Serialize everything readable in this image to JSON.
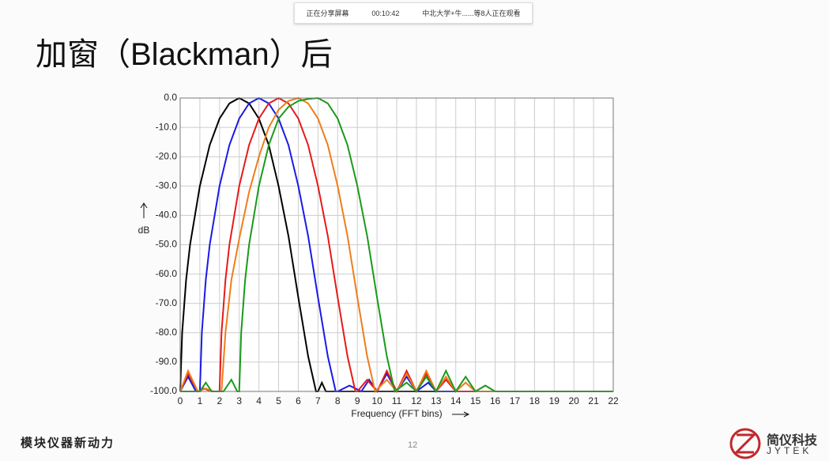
{
  "share_bar": {
    "status": "正在分享屏幕",
    "time": "00:10:42",
    "viewers": "中北大学+牛......等8人正在观看"
  },
  "slide": {
    "title": "加窗（Blackman）后",
    "footer": "模块仪器新动力",
    "page": "12",
    "logo_cn": "简仪科技",
    "logo_en": "JYTEK"
  },
  "chart_data": {
    "type": "line",
    "xlabel": "Frequency (FFT bins)",
    "ylabel": "dB",
    "xlim": [
      0,
      22
    ],
    "ylim": [
      -100,
      0
    ],
    "xticks": [
      0,
      1,
      2,
      3,
      4,
      5,
      6,
      7,
      8,
      9,
      10,
      11,
      12,
      13,
      14,
      15,
      16,
      17,
      18,
      19,
      20,
      21,
      22
    ],
    "yticks": [
      {
        "value": 0,
        "label": "0.0"
      },
      {
        "value": -10,
        "label": "-10.0"
      },
      {
        "value": -20,
        "label": "-20.0"
      },
      {
        "value": -30,
        "label": "-30.0"
      },
      {
        "value": -40,
        "label": "-40.0"
      },
      {
        "value": -50,
        "label": "-50.0"
      },
      {
        "value": -60,
        "label": "-60.0"
      },
      {
        "value": -70,
        "label": "-70.0"
      },
      {
        "value": -80,
        "label": "-80.0"
      },
      {
        "value": -90,
        "label": "-90.0"
      },
      {
        "value": -100,
        "label": "-100.0"
      }
    ],
    "grid": true,
    "series": [
      {
        "color": "#000000",
        "x": [
          0,
          0.1,
          0.3,
          0.5,
          1,
          1.5,
          2,
          2.5,
          3,
          3.5,
          4,
          4.5,
          5,
          5.5,
          6,
          6.5,
          6.9,
          7,
          7.2,
          7.4,
          22
        ],
        "values": [
          -100,
          -80,
          -62,
          -50,
          -30,
          -16,
          -7,
          -1.8,
          0,
          -1.8,
          -7,
          -16,
          -30,
          -47,
          -68,
          -88,
          -100,
          -100,
          -97,
          -100,
          -100
        ]
      },
      {
        "color": "#1a1ae6",
        "x": [
          0,
          0.4,
          0.8,
          1,
          1.1,
          1.3,
          1.5,
          2,
          2.5,
          3,
          3.5,
          4,
          4.5,
          5,
          5.5,
          6,
          6.5,
          7,
          7.5,
          7.9,
          8,
          8.6,
          9.2,
          9.6,
          10,
          10.5,
          11,
          11.5,
          12,
          12.6,
          13,
          22
        ],
        "values": [
          -100,
          -95,
          -100,
          -100,
          -80,
          -62,
          -50,
          -30,
          -16,
          -7,
          -1.8,
          0,
          -1.8,
          -7,
          -16,
          -30,
          -47,
          -68,
          -88,
          -100,
          -100,
          -98,
          -100,
          -96,
          -100,
          -94,
          -100,
          -95,
          -100,
          -97,
          -100,
          -100
        ]
      },
      {
        "color": "#e61a1a",
        "x": [
          0,
          0.4,
          0.9,
          1.2,
          1.6,
          2,
          2.1,
          2.3,
          2.5,
          3,
          3.5,
          4,
          4.5,
          5,
          5.5,
          6,
          6.5,
          7,
          7.5,
          8,
          8.5,
          8.9,
          9,
          9.5,
          10,
          10.5,
          11,
          11.5,
          12,
          12.5,
          13,
          13.5,
          14,
          22
        ],
        "values": [
          -100,
          -94,
          -100,
          -99,
          -100,
          -100,
          -80,
          -62,
          -50,
          -30,
          -16,
          -7,
          -1.8,
          0,
          -1.8,
          -7,
          -16,
          -30,
          -47,
          -68,
          -88,
          -100,
          -100,
          -96,
          -100,
          -93,
          -100,
          -93,
          -100,
          -94,
          -100,
          -96,
          -100,
          -100
        ]
      },
      {
        "color": "#f07d1a",
        "x": [
          0,
          0.4,
          0.9,
          1.3,
          1.7,
          2.1,
          2.3,
          2.6,
          3,
          3.5,
          4,
          4.5,
          5,
          5.5,
          6,
          6.5,
          7,
          7.5,
          8,
          8.5,
          9,
          9.5,
          9.9,
          10.5,
          11,
          11.5,
          12,
          12.5,
          13,
          13.5,
          14,
          14.5,
          15,
          22
        ],
        "values": [
          -100,
          -93,
          -100,
          -99,
          -100,
          -100,
          -80,
          -62,
          -48,
          -32,
          -20,
          -10,
          -4,
          -1,
          0,
          -1.8,
          -7,
          -16,
          -30,
          -47,
          -68,
          -88,
          -100,
          -96,
          -100,
          -94,
          -100,
          -93,
          -100,
          -95,
          -100,
          -97,
          -100,
          -100
        ]
      },
      {
        "color": "#1a9a1a",
        "x": [
          0,
          1,
          1.3,
          1.6,
          2.2,
          2.6,
          2.9,
          3,
          3.1,
          3.3,
          3.5,
          4,
          4.5,
          5,
          5.5,
          6,
          6.5,
          7,
          7.5,
          8,
          8.5,
          9,
          9.5,
          10,
          10.5,
          10.9,
          11.5,
          12,
          12.5,
          13,
          13.5,
          14,
          14.5,
          15,
          15.5,
          16,
          22
        ],
        "values": [
          -100,
          -100,
          -97,
          -100,
          -100,
          -96,
          -100,
          -100,
          -80,
          -62,
          -50,
          -30,
          -16,
          -7,
          -3,
          -1,
          -0.3,
          0,
          -1.8,
          -7,
          -16,
          -30,
          -47,
          -68,
          -88,
          -100,
          -97,
          -100,
          -95,
          -100,
          -93,
          -100,
          -95,
          -100,
          -98,
          -100,
          -100
        ]
      }
    ]
  }
}
